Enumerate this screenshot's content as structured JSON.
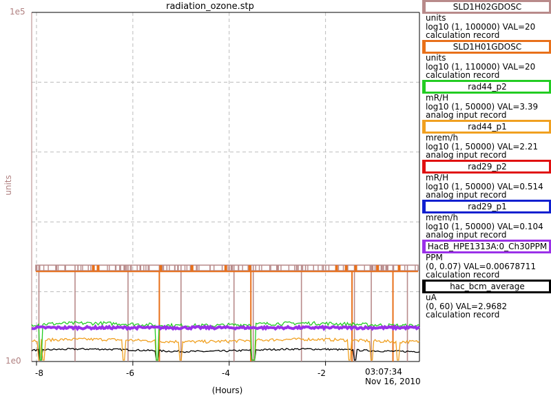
{
  "chart_data": {
    "type": "line",
    "title": "radiation_ozone.stp",
    "ylabel": "units",
    "xlabel": "(Hours)",
    "y_top_label": "1e5",
    "y_bottom_label": "1e0",
    "y_scale": "log",
    "ylim": [
      1,
      100000
    ],
    "xlim": [
      -8.1,
      -0.05
    ],
    "x_ticks": [
      "-8",
      "-6",
      "-4",
      "-2"
    ],
    "x_tick_values": [
      -8,
      -6,
      -4,
      -2
    ],
    "time_label": "03:07:34",
    "date_label": "Nov 16, 2010",
    "grid": true,
    "series": [
      {
        "name": "SLD1H02GDOSC",
        "color": "#b88a8a",
        "approx_level": 20,
        "spiky": true
      },
      {
        "name": "SLD1H01GDOSC",
        "color": "#e8701a",
        "approx_level": 20,
        "spiky": true
      },
      {
        "name": "rad44_p2",
        "color": "#22cc22",
        "approx_level": 3.39
      },
      {
        "name": "rad44_p1",
        "color": "#f0a020",
        "approx_level": 2.21
      },
      {
        "name": "HacB_HPE1313A:0_Ch30PPM",
        "color": "#9a30e8",
        "approx_level": 3.0
      },
      {
        "name": "hac_bcm_average",
        "color": "#000000",
        "approx_level": 1.5
      }
    ]
  },
  "legend": [
    {
      "name": "SLD1H02GDOSC",
      "color": "#b88a8a",
      "unit": "units",
      "range": "log10 (1, 100000) VAL=20",
      "rtype": "calculation record"
    },
    {
      "name": "SLD1H01GDOSC",
      "color": "#e8701a",
      "unit": "units",
      "range": "log10 (1, 110000) VAL=20",
      "rtype": "calculation record"
    },
    {
      "name": "rad44_p2",
      "color": "#22cc22",
      "unit": "mR/H",
      "range": "log10 (1, 50000) VAL=3.39",
      "rtype": "analog input record"
    },
    {
      "name": "rad44_p1",
      "color": "#f0a020",
      "unit": "mrem/h",
      "range": "log10 (1, 50000) VAL=2.21",
      "rtype": "analog input record"
    },
    {
      "name": "rad29_p2",
      "color": "#e01010",
      "unit": "mR/H",
      "range": "log10 (1, 50000) VAL=0.514",
      "rtype": "analog input record"
    },
    {
      "name": "rad29_p1",
      "color": "#1020d0",
      "unit": "mrem/h",
      "range": "log10 (1, 50000) VAL=0.104",
      "rtype": "analog input record"
    },
    {
      "name": "HacB_HPE1313A:0_Ch30PPM",
      "color": "#9a30e8",
      "unit": "PPM",
      "range": "(0, 0.07) VAL=0.00678711",
      "rtype": "calculation record"
    },
    {
      "name": "hac_bcm_average",
      "color": "#000000",
      "unit": "uA",
      "range": "(0, 60) VAL=2.9682",
      "rtype": "calculation record"
    }
  ]
}
